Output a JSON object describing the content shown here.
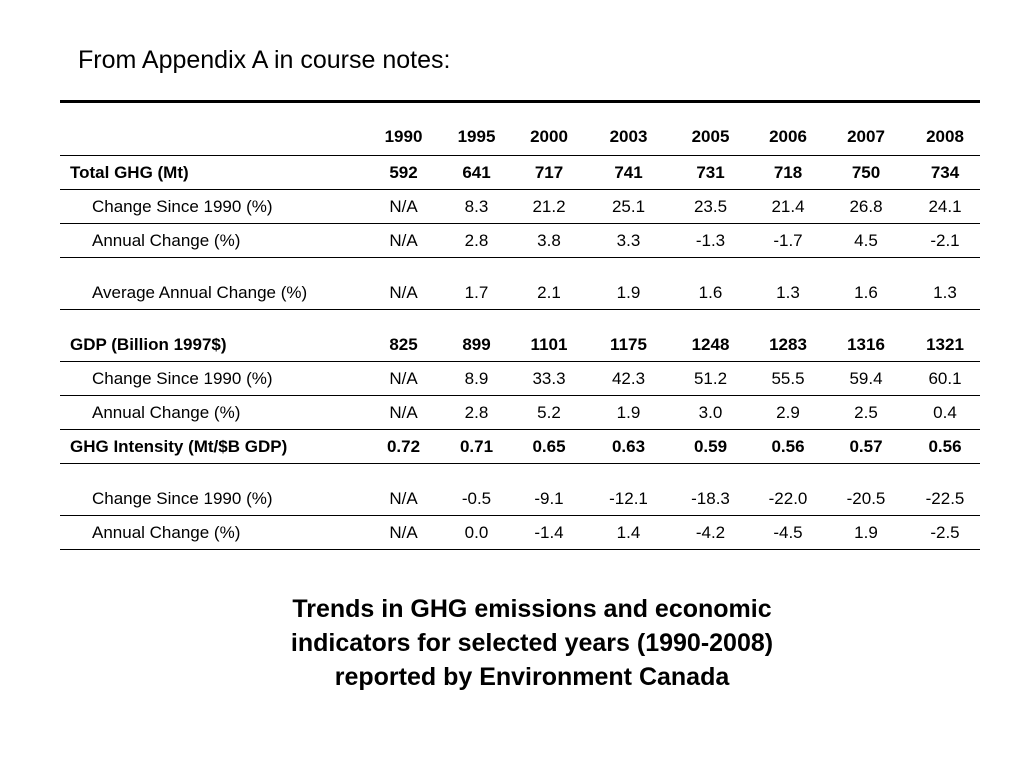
{
  "heading": "From Appendix A in course notes:",
  "table": {
    "years": [
      "1990",
      "1995",
      "2000",
      "2003",
      "2005",
      "2006",
      "2007",
      "2008"
    ],
    "rows": [
      {
        "label": "Total GHG (Mt)",
        "values": [
          "592",
          "641",
          "717",
          "741",
          "731",
          "718",
          "750",
          "734"
        ]
      },
      {
        "label": "Change Since 1990 (%)",
        "values": [
          "N/A",
          "8.3",
          "21.2",
          "25.1",
          "23.5",
          "21.4",
          "26.8",
          "24.1"
        ]
      },
      {
        "label": "Annual Change (%)",
        "values": [
          "N/A",
          "2.8",
          "3.8",
          "3.3",
          "-1.3",
          "-1.7",
          "4.5",
          "-2.1"
        ]
      },
      {
        "label": "Average Annual Change (%)",
        "values": [
          "N/A",
          "1.7",
          "2.1",
          "1.9",
          "1.6",
          "1.3",
          "1.6",
          "1.3"
        ]
      },
      {
        "label": "GDP (Billion 1997$)",
        "values": [
          "825",
          "899",
          "1101",
          "1175",
          "1248",
          "1283",
          "1316",
          "1321"
        ]
      },
      {
        "label": "Change Since 1990 (%)",
        "values": [
          "N/A",
          "8.9",
          "33.3",
          "42.3",
          "51.2",
          "55.5",
          "59.4",
          "60.1"
        ]
      },
      {
        "label": "Annual Change (%)",
        "values": [
          "N/A",
          "2.8",
          "5.2",
          "1.9",
          "3.0",
          "2.9",
          "2.5",
          "0.4"
        ]
      },
      {
        "label": "GHG Intensity (Mt/$B GDP)",
        "values": [
          "0.72",
          "0.71",
          "0.65",
          "0.63",
          "0.59",
          "0.56",
          "0.57",
          "0.56"
        ]
      },
      {
        "label": "Change Since 1990 (%)",
        "values": [
          "N/A",
          "-0.5",
          "-9.1",
          "-12.1",
          "-18.3",
          "-22.0",
          "-20.5",
          "-22.5"
        ]
      },
      {
        "label": "Annual Change (%)",
        "values": [
          "N/A",
          "0.0",
          "-1.4",
          "1.4",
          "-4.2",
          "-4.5",
          "1.9",
          "-2.5"
        ]
      }
    ]
  },
  "caption": {
    "line1": "Trends in GHG emissions and economic",
    "line2": "indicators for selected years (1990-2008)",
    "line3": "reported by Environment Canada"
  }
}
